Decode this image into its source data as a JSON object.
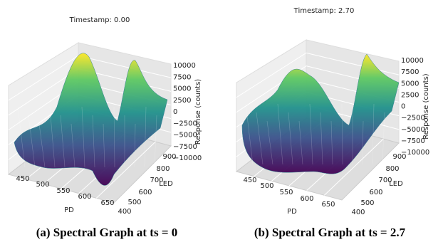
{
  "panels": [
    {
      "title": "Timestamp:  0.00",
      "x_label": "PD",
      "y_label": "LED",
      "z_label": "Response (counts)",
      "x_ticks": [
        "450",
        "500",
        "550",
        "600",
        "650"
      ],
      "y_ticks": [
        "900",
        "800",
        "700",
        "600",
        "500",
        "400"
      ],
      "z_ticks": [
        "10000",
        "7500",
        "5000",
        "2500",
        "0",
        "−2500",
        "−5000",
        "−7500",
        "−10000"
      ],
      "caption": "(a) Spectral Graph at ts = 0"
    },
    {
      "title": "Timestamp:  2.70",
      "x_label": "PD",
      "y_label": "LED",
      "z_label": "Response (counts)",
      "x_ticks": [
        "450",
        "500",
        "550",
        "600",
        "650"
      ],
      "y_ticks": [
        "900",
        "800",
        "700",
        "600",
        "500",
        "400"
      ],
      "z_ticks": [
        "10000",
        "7500",
        "5000",
        "2500",
        "0",
        "−2500",
        "−5000",
        "−7500",
        "−10000"
      ],
      "caption": "(b) Spectral Graph at ts = 2.7"
    }
  ]
}
